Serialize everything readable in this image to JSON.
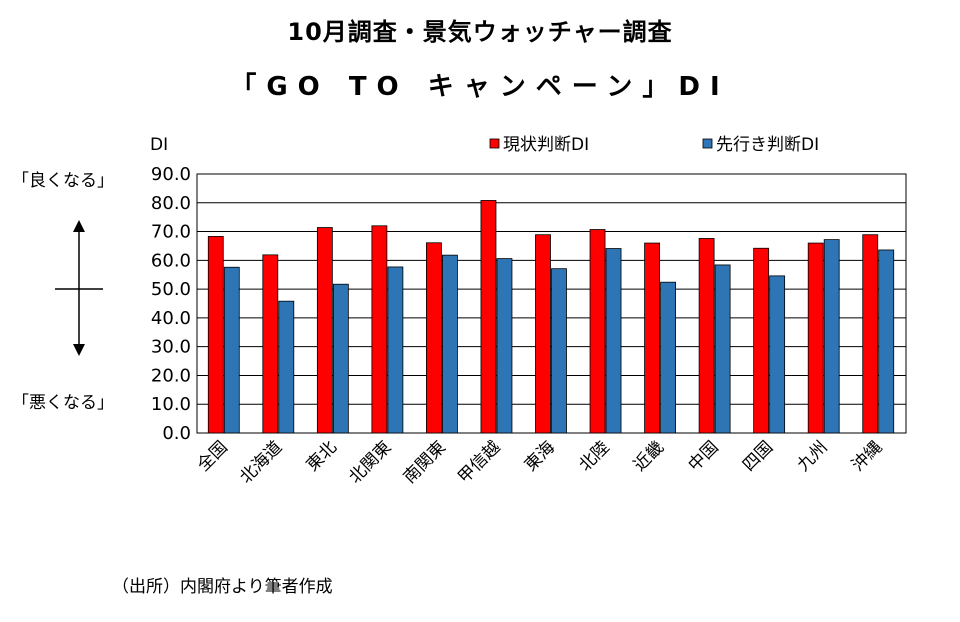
{
  "title_line1": "10月調査・景気ウォッチャー調査",
  "title_line2": "「GO TO キャンペーン」DI",
  "y_unit": "DI",
  "good_label": "「良くなる」",
  "bad_label": "「悪くなる」",
  "source": "（出所）内閣府より筆者作成",
  "colors": {
    "current": "#ff0000",
    "future": "#2e75b6"
  },
  "chart_data": {
    "type": "bar",
    "categories": [
      "全国",
      "北海道",
      "東北",
      "北関東",
      "南関東",
      "甲信越",
      "東海",
      "北陸",
      "近畿",
      "中国",
      "四国",
      "九州",
      "沖縄"
    ],
    "series": [
      {
        "name": "現状判断DI",
        "values": [
          68.3,
          61.9,
          71.4,
          72.0,
          66.1,
          80.8,
          68.9,
          70.7,
          66.0,
          67.6,
          64.2,
          66.0,
          68.9
        ]
      },
      {
        "name": "先行き判断DI",
        "values": [
          57.6,
          45.8,
          51.7,
          57.7,
          61.8,
          60.6,
          57.1,
          64.1,
          52.4,
          58.4,
          54.6,
          67.2,
          63.6
        ]
      }
    ],
    "ylim": [
      0,
      90
    ],
    "yticks": [
      "0.0",
      "10.0",
      "20.0",
      "30.0",
      "40.0",
      "50.0",
      "60.0",
      "70.0",
      "80.0",
      "90.0"
    ],
    "legend": "top-right",
    "grid": true
  }
}
